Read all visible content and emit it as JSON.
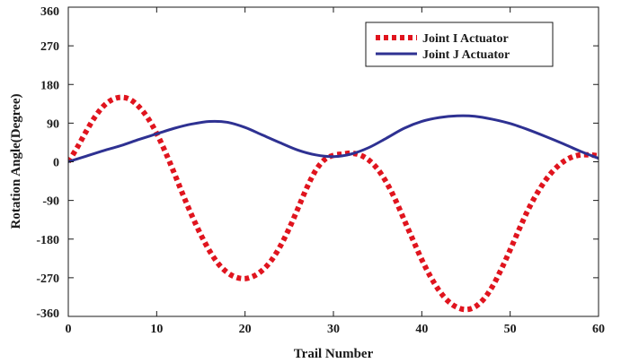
{
  "chart_data": {
    "type": "line",
    "xlabel": "Trail Number",
    "ylabel": "Rotation Angle(Degree)",
    "xlim": [
      0,
      60
    ],
    "ylim": [
      -360,
      360
    ],
    "xticks": [
      "0",
      "10",
      "20",
      "30",
      "40",
      "50",
      "60"
    ],
    "yticks": [
      "360",
      "270",
      "180",
      "90",
      "0",
      "-90",
      "-180",
      "-270",
      "-360"
    ],
    "grid": false,
    "legend_position": "top-right",
    "series": [
      {
        "name": "Joint I Actuator",
        "color": "#e0141e",
        "style": "dotted",
        "x": [
          0,
          1,
          2,
          3,
          4,
          5,
          6,
          7,
          8,
          9,
          10,
          11,
          12,
          13,
          14,
          15,
          16,
          17,
          18,
          19,
          20,
          21,
          22,
          23,
          24,
          25,
          26,
          27,
          28,
          29,
          30,
          31,
          32,
          33,
          34,
          35,
          36,
          37,
          38,
          39,
          40,
          41,
          42,
          43,
          44,
          45,
          46,
          47,
          48,
          49,
          50,
          51,
          52,
          53,
          54,
          55,
          56,
          57,
          58,
          59,
          60
        ],
        "values": [
          0,
          33,
          70,
          104,
          130,
          145,
          150,
          145,
          128,
          102,
          66,
          22,
          -27,
          -78,
          -126,
          -170,
          -208,
          -238,
          -258,
          -269,
          -272,
          -266,
          -252,
          -229,
          -196,
          -155,
          -108,
          -60,
          -20,
          5,
          15,
          18,
          20,
          16,
          4,
          -17,
          -48,
          -88,
          -135,
          -182,
          -228,
          -268,
          -301,
          -325,
          -339,
          -344,
          -338,
          -320,
          -290,
          -250,
          -205,
          -158,
          -113,
          -75,
          -43,
          -18,
          0,
          11,
          16,
          16,
          14
        ]
      },
      {
        "name": "Joint J Actuator",
        "color": "#2e3192",
        "style": "solid",
        "x": [
          0,
          2,
          4,
          6,
          8,
          10,
          12,
          14,
          16,
          18,
          20,
          22,
          24,
          26,
          28,
          30,
          32,
          34,
          36,
          38,
          40,
          42,
          44,
          46,
          48,
          50,
          52,
          54,
          56,
          58,
          60
        ],
        "values": [
          0,
          13,
          26,
          38,
          52,
          65,
          78,
          88,
          94,
          92,
          80,
          62,
          44,
          27,
          16,
          12,
          18,
          33,
          55,
          78,
          94,
          103,
          107,
          106,
          99,
          89,
          75,
          59,
          42,
          24,
          8
        ]
      }
    ]
  }
}
